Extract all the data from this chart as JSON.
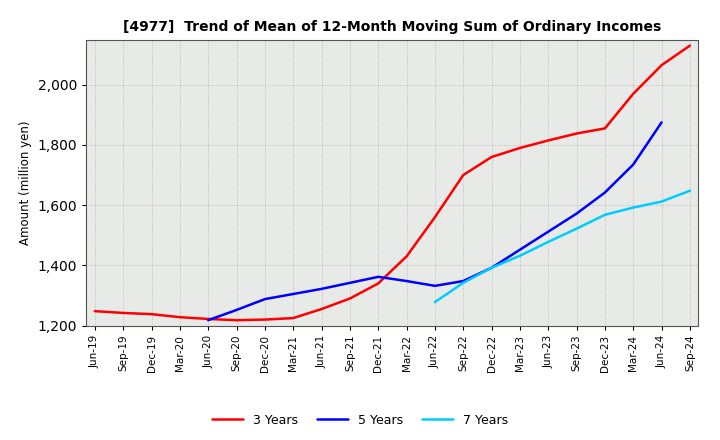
{
  "title": "[4977]  Trend of Mean of 12-Month Moving Sum of Ordinary Incomes",
  "ylabel": "Amount (million yen)",
  "ylim": [
    1200,
    2150
  ],
  "yticks": [
    1200,
    1400,
    1600,
    1800,
    2000
  ],
  "background_color": "#ffffff",
  "plot_bg_color": "#e8eae8",
  "grid_color": "#999999",
  "x_labels": [
    "Jun-19",
    "Sep-19",
    "Dec-19",
    "Mar-20",
    "Jun-20",
    "Sep-20",
    "Dec-20",
    "Mar-21",
    "Jun-21",
    "Sep-21",
    "Dec-21",
    "Mar-22",
    "Jun-22",
    "Sep-22",
    "Dec-22",
    "Mar-23",
    "Jun-23",
    "Sep-23",
    "Dec-23",
    "Mar-24",
    "Jun-24",
    "Sep-24"
  ],
  "series": {
    "3 Years": {
      "color": "#ff0000",
      "data": [
        1248,
        1242,
        1238,
        1228,
        1222,
        1218,
        1220,
        1225,
        1255,
        1290,
        1340,
        1430,
        1560,
        1700,
        1760,
        1790,
        1815,
        1838,
        1855,
        1970,
        2065,
        2130
      ]
    },
    "5 Years": {
      "color": "#0000ff",
      "data": [
        null,
        null,
        null,
        null,
        1218,
        1252,
        1288,
        1305,
        1322,
        1342,
        1362,
        1348,
        1332,
        1348,
        1392,
        1452,
        1512,
        1572,
        1642,
        1735,
        1875,
        null
      ]
    },
    "7 Years": {
      "color": "#00ccff",
      "data": [
        null,
        null,
        null,
        null,
        null,
        null,
        null,
        null,
        null,
        null,
        null,
        null,
        1278,
        1342,
        1392,
        1432,
        1478,
        1522,
        1568,
        1592,
        1612,
        1648
      ]
    },
    "10 Years": {
      "color": "#008000",
      "data": [
        null,
        null,
        null,
        null,
        null,
        null,
        null,
        null,
        null,
        null,
        null,
        null,
        null,
        null,
        null,
        null,
        null,
        null,
        null,
        null,
        null,
        null
      ]
    }
  }
}
